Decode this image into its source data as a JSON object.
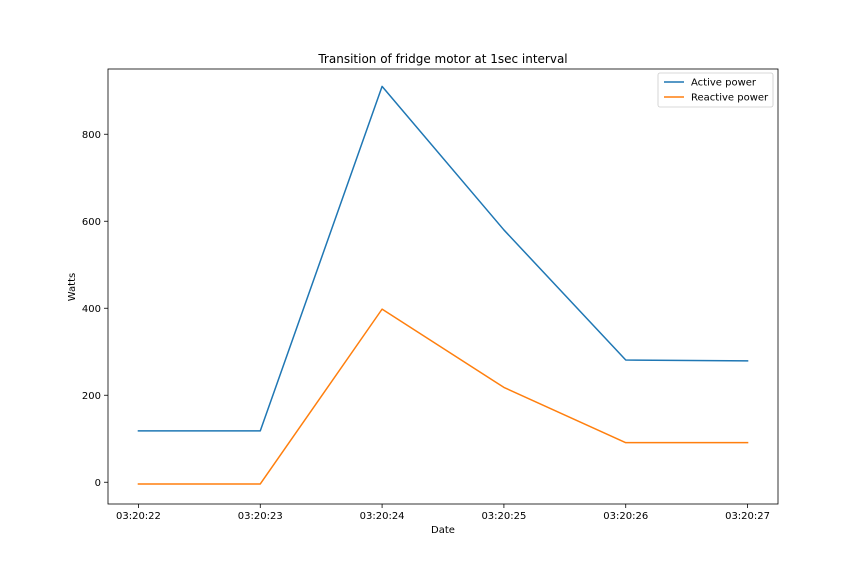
{
  "chart_data": {
    "type": "line",
    "title": "Transition of fridge motor at 1sec interval",
    "xlabel": "Date",
    "ylabel": "Watts",
    "x": [
      "03:20:22",
      "03:20:23",
      "03:20:24",
      "03:20:25",
      "03:20:26",
      "03:20:27"
    ],
    "xlim": [
      -0.25,
      5.25
    ],
    "ylim": [
      -50,
      950
    ],
    "yticks": [
      0,
      200,
      400,
      600,
      800
    ],
    "grid": false,
    "legend_position": "top-right",
    "series": [
      {
        "name": "Active power",
        "color": "#1f77b4",
        "values": [
          118,
          118,
          910,
          580,
          281,
          279
        ]
      },
      {
        "name": "Reactive power",
        "color": "#ff7f0e",
        "values": [
          -4,
          -4,
          398,
          218,
          91,
          91
        ]
      }
    ]
  }
}
